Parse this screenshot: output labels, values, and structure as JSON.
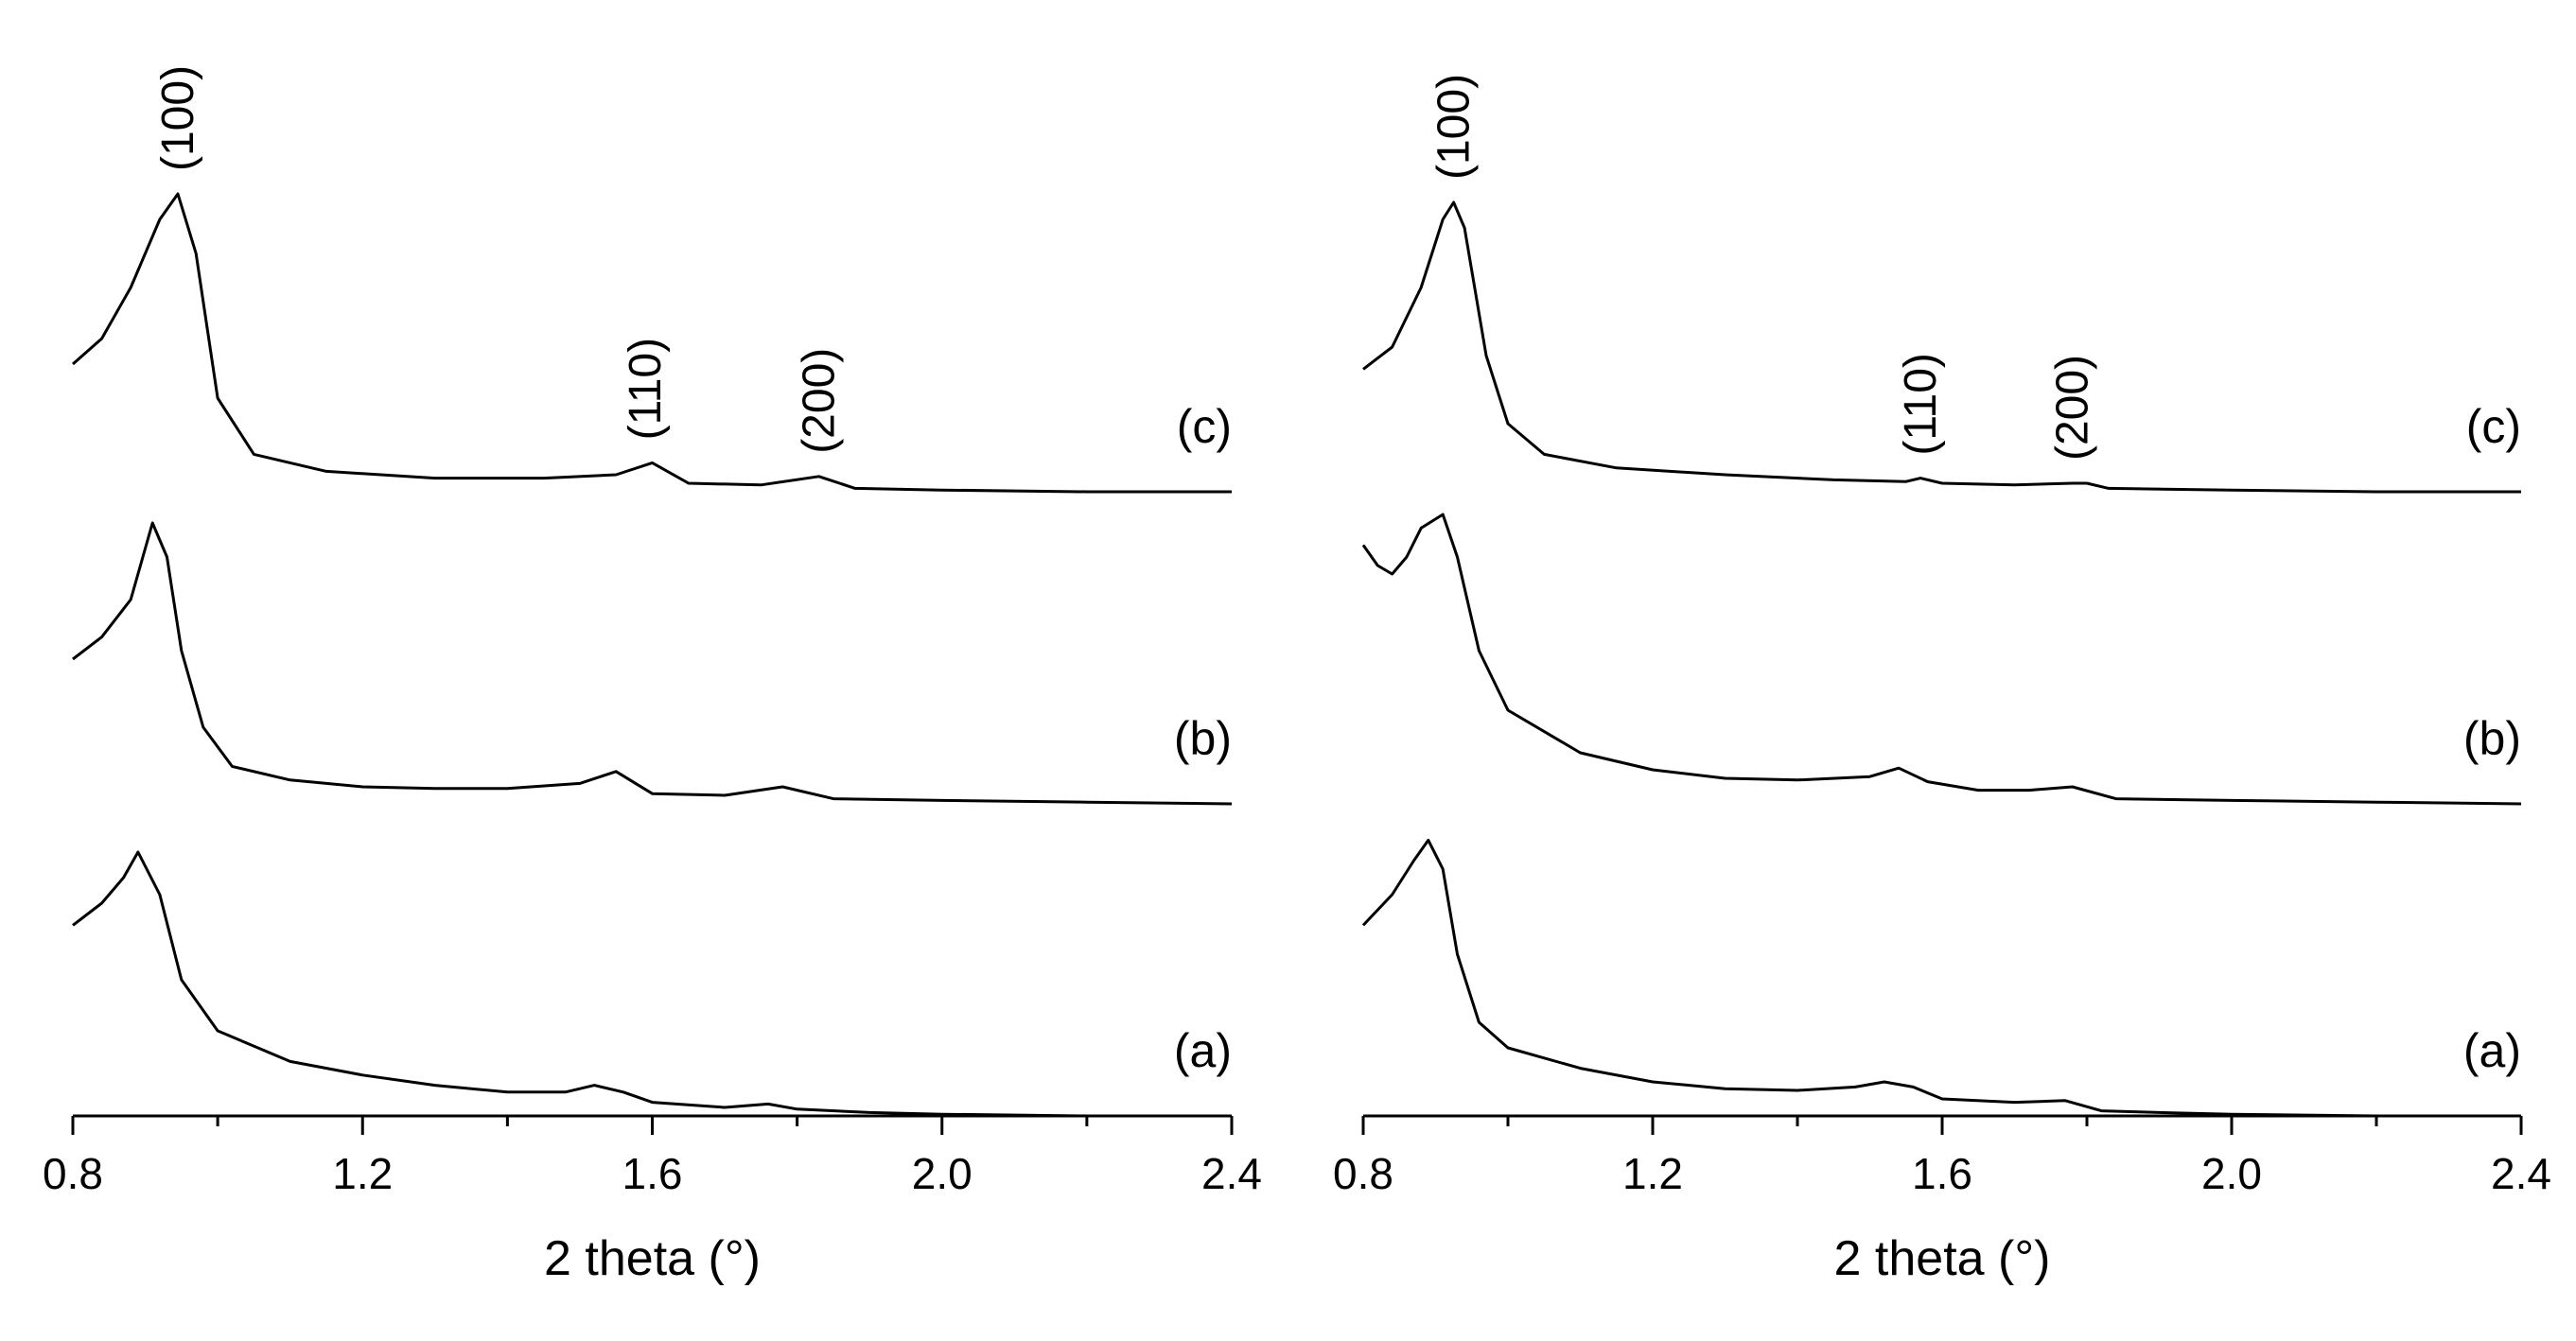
{
  "chart_data": [
    {
      "type": "line",
      "panel": "left",
      "xlabel": "2 theta (°)",
      "ylabel": "",
      "xlim": [
        0.8,
        2.4
      ],
      "xticks": [
        "0.8",
        "1.2",
        "1.6",
        "2.0",
        "2.4"
      ],
      "series": [
        {
          "name": "(a)",
          "offset": 0,
          "x": [
            0.8,
            0.84,
            0.87,
            0.89,
            0.92,
            0.95,
            1.0,
            1.1,
            1.2,
            1.3,
            1.4,
            1.48,
            1.52,
            1.56,
            1.6,
            1.7,
            1.76,
            1.8,
            1.9,
            2.0,
            2.2,
            2.4
          ],
          "y": [
            1.12,
            1.25,
            1.4,
            1.55,
            1.3,
            0.8,
            0.5,
            0.32,
            0.24,
            0.18,
            0.14,
            0.14,
            0.18,
            0.14,
            0.08,
            0.05,
            0.07,
            0.04,
            0.02,
            0.01,
            0.0,
            0.0
          ]
        },
        {
          "name": "(b)",
          "offset": 1,
          "x": [
            0.8,
            0.84,
            0.88,
            0.91,
            0.93,
            0.95,
            0.98,
            1.02,
            1.1,
            1.2,
            1.3,
            1.4,
            1.5,
            1.55,
            1.6,
            1.7,
            1.78,
            1.85,
            2.0,
            2.2,
            2.4
          ],
          "y": [
            0.85,
            0.98,
            1.2,
            1.65,
            1.45,
            0.9,
            0.45,
            0.22,
            0.14,
            0.1,
            0.09,
            0.09,
            0.12,
            0.19,
            0.06,
            0.05,
            0.1,
            0.03,
            0.02,
            0.01,
            0.0
          ]
        },
        {
          "name": "(c)",
          "offset": 2,
          "x": [
            0.8,
            0.84,
            0.88,
            0.92,
            0.945,
            0.97,
            1.0,
            1.05,
            1.15,
            1.3,
            1.45,
            1.55,
            1.6,
            1.65,
            1.75,
            1.83,
            1.88,
            2.0,
            2.2,
            2.4
          ],
          "y": [
            0.75,
            0.9,
            1.2,
            1.6,
            1.75,
            1.4,
            0.55,
            0.22,
            0.12,
            0.08,
            0.08,
            0.1,
            0.17,
            0.05,
            0.04,
            0.09,
            0.02,
            0.01,
            0.0,
            0.0
          ]
        }
      ],
      "peak_labels": [
        {
          "text": "(100)",
          "x": 0.945
        },
        {
          "text": "(110)",
          "x": 1.59
        },
        {
          "text": "(200)",
          "x": 1.83
        }
      ]
    },
    {
      "type": "line",
      "panel": "right",
      "xlabel": "2 theta (°)",
      "ylabel": "",
      "xlim": [
        0.8,
        2.4
      ],
      "xticks": [
        "0.8",
        "1.2",
        "1.6",
        "2.0",
        "2.4"
      ],
      "series": [
        {
          "name": "(a)",
          "offset": 0,
          "x": [
            0.8,
            0.84,
            0.87,
            0.89,
            0.91,
            0.93,
            0.96,
            1.0,
            1.1,
            1.2,
            1.3,
            1.4,
            1.48,
            1.52,
            1.56,
            1.6,
            1.7,
            1.77,
            1.82,
            1.9,
            2.0,
            2.2,
            2.4
          ],
          "y": [
            1.12,
            1.3,
            1.5,
            1.62,
            1.45,
            0.95,
            0.55,
            0.4,
            0.28,
            0.2,
            0.16,
            0.15,
            0.17,
            0.2,
            0.17,
            0.1,
            0.08,
            0.09,
            0.03,
            0.02,
            0.01,
            0.0,
            0.0
          ]
        },
        {
          "name": "(b)",
          "offset": 1,
          "x": [
            0.8,
            0.82,
            0.84,
            0.86,
            0.88,
            0.91,
            0.93,
            0.96,
            1.0,
            1.1,
            1.2,
            1.3,
            1.4,
            1.5,
            1.54,
            1.58,
            1.65,
            1.72,
            1.78,
            1.84,
            2.0,
            2.2,
            2.4
          ],
          "y": [
            1.52,
            1.4,
            1.35,
            1.45,
            1.62,
            1.7,
            1.45,
            0.9,
            0.55,
            0.3,
            0.2,
            0.15,
            0.14,
            0.16,
            0.21,
            0.13,
            0.08,
            0.08,
            0.1,
            0.03,
            0.02,
            0.01,
            0.0
          ]
        },
        {
          "name": "(c)",
          "offset": 2,
          "x": [
            0.8,
            0.84,
            0.88,
            0.91,
            0.925,
            0.94,
            0.97,
            1.0,
            1.05,
            1.15,
            1.3,
            1.45,
            1.55,
            1.57,
            1.6,
            1.7,
            1.78,
            1.8,
            1.83,
            2.0,
            2.2,
            2.4
          ],
          "y": [
            0.72,
            0.85,
            1.2,
            1.6,
            1.7,
            1.55,
            0.8,
            0.4,
            0.22,
            0.14,
            0.1,
            0.07,
            0.06,
            0.08,
            0.05,
            0.04,
            0.05,
            0.05,
            0.02,
            0.01,
            0.0,
            0.0
          ]
        }
      ],
      "peak_labels": [
        {
          "text": "(100)",
          "x": 0.925
        },
        {
          "text": "(110)",
          "x": 1.57
        },
        {
          "text": "(200)",
          "x": 1.78
        }
      ]
    }
  ]
}
